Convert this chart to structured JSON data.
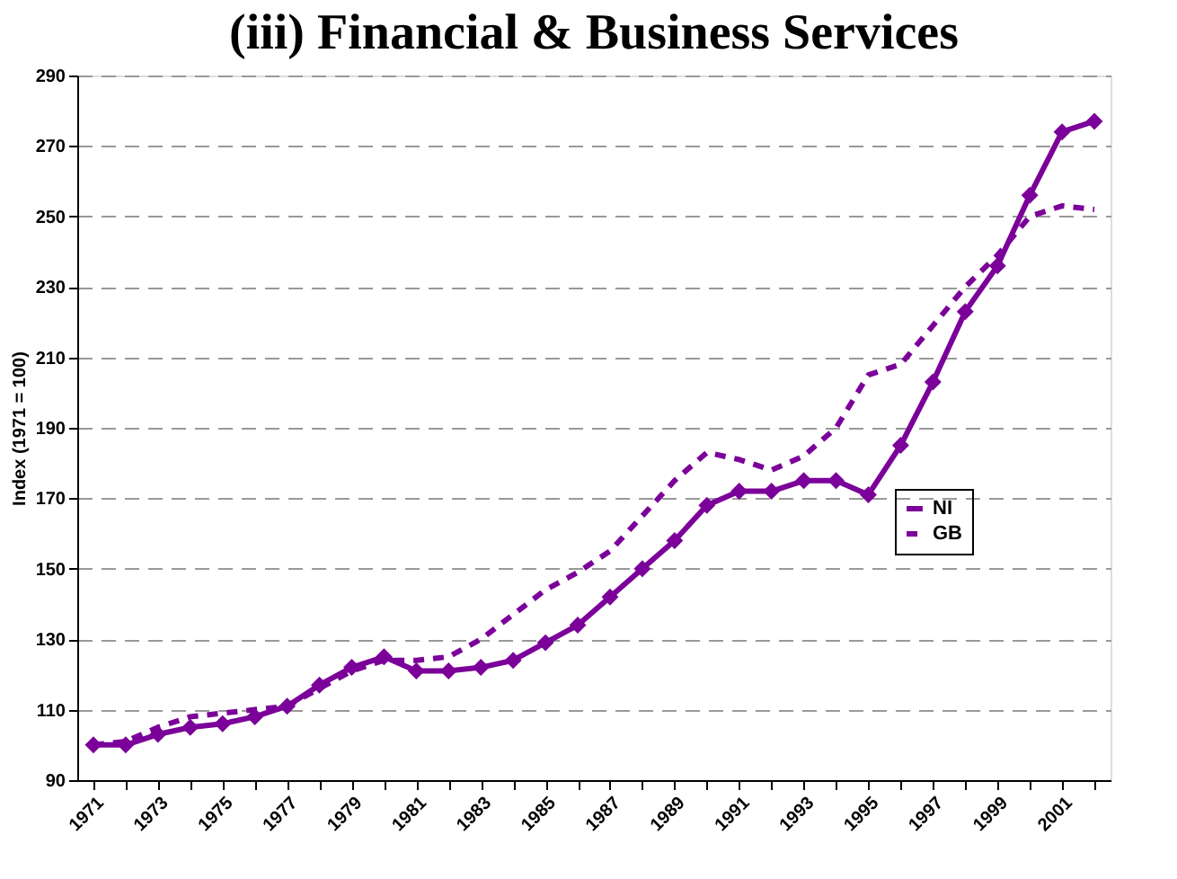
{
  "chart_data": {
    "type": "line",
    "title": "(iii) Financial & Business Services",
    "ylabel": "Index (1971 = 100)",
    "categories": [
      "1971",
      null,
      "1973",
      null,
      "1975",
      null,
      "1977",
      null,
      "1979",
      null,
      "1981",
      null,
      "1983",
      null,
      "1985",
      null,
      "1987",
      null,
      "1989",
      null,
      "1991",
      null,
      "1993",
      null,
      "1995",
      null,
      "1997",
      null,
      "1999",
      null,
      "2001",
      null
    ],
    "series": [
      {
        "name": "NI",
        "color": "#7b0099",
        "marker": "diamond",
        "line_style": "solid",
        "values": [
          100,
          100,
          103,
          105,
          106,
          108,
          111,
          117,
          122,
          125,
          121,
          121,
          122,
          124,
          129,
          134,
          142,
          150,
          158,
          168,
          172,
          172,
          175,
          175,
          171,
          185,
          203,
          223,
          236,
          256,
          274,
          277
        ]
      },
      {
        "name": "GB",
        "color": "#7b0099",
        "marker": "none",
        "line_style": "dashed",
        "values": [
          100,
          101,
          105,
          108,
          109,
          110,
          111,
          116,
          121,
          124,
          124,
          125,
          130,
          137,
          144,
          149,
          155,
          165,
          175,
          183,
          181,
          178,
          182,
          190,
          205,
          208,
          219,
          230,
          239,
          250,
          253,
          252
        ]
      }
    ],
    "ylim": [
      90,
      290
    ],
    "yticks": [
      90,
      110,
      130,
      150,
      170,
      190,
      210,
      230,
      250,
      270,
      290
    ],
    "grid": "y",
    "legend": "right"
  }
}
